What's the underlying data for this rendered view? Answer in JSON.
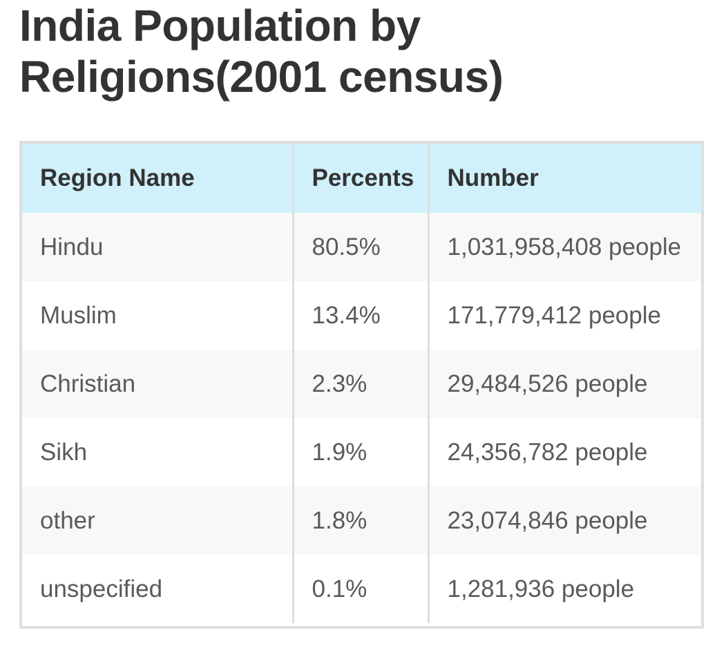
{
  "title": {
    "line1": "India Population by",
    "line2": "Religions(2001 census)"
  },
  "table": {
    "headers": [
      "Region Name",
      "Percents",
      "Number"
    ],
    "rows": [
      [
        "Hindu",
        "80.5%",
        "1,031,958,408 people"
      ],
      [
        "Muslim",
        "13.4%",
        "171,779,412 people"
      ],
      [
        "Christian",
        "2.3%",
        "29,484,526 people"
      ],
      [
        "Sikh",
        "1.9%",
        "24,356,782 people"
      ],
      [
        "other",
        "1.8%",
        "23,074,846 people"
      ],
      [
        "unspecified",
        "0.1%",
        "1,281,936 people"
      ]
    ]
  },
  "colors": {
    "header_bg": "#d0f1fb",
    "stripe_bg": "#f8f8f8",
    "border": "#dedede"
  }
}
